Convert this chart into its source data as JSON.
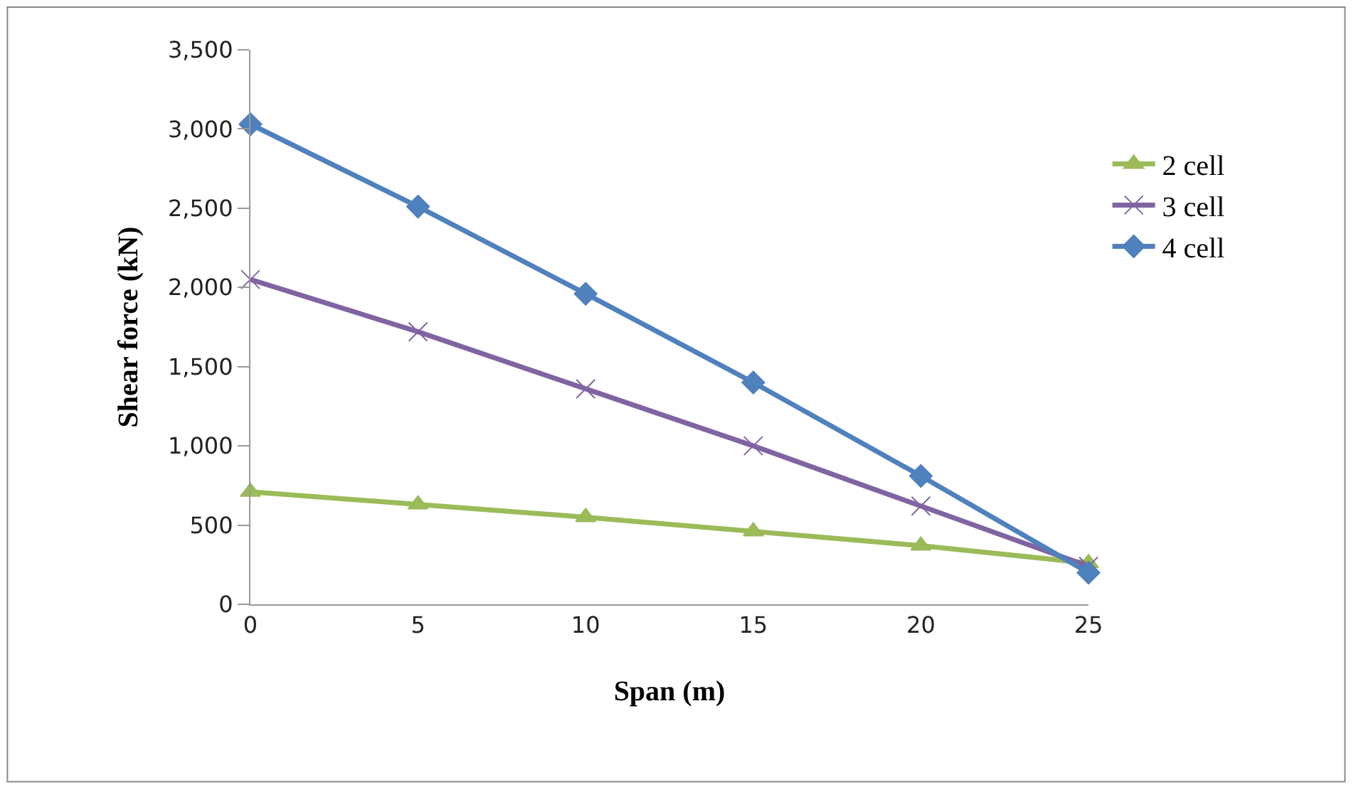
{
  "chart_data": {
    "type": "line",
    "xlabel": "Span (m)",
    "ylabel": "Shear force (kN)",
    "x": [
      0,
      5,
      10,
      15,
      20,
      25
    ],
    "series": [
      {
        "name": "2 cell",
        "color": "#9bbb59",
        "marker": "triangle",
        "values": [
          710,
          630,
          550,
          460,
          370,
          260
        ]
      },
      {
        "name": "3 cell",
        "color": "#8064a2",
        "marker": "cross",
        "values": [
          2050,
          1720,
          1360,
          1000,
          620,
          240
        ]
      },
      {
        "name": "4 cell",
        "color": "#4f81bd",
        "marker": "diamond",
        "values": [
          3030,
          2510,
          1960,
          1400,
          810,
          200
        ]
      }
    ],
    "xlim": [
      0,
      25
    ],
    "xticks": [
      0,
      5,
      10,
      15,
      20,
      25
    ],
    "ylim": [
      0,
      3500
    ],
    "yticks": [
      {
        "value": 0,
        "label": "0"
      },
      {
        "value": 500,
        "label": "500"
      },
      {
        "value": 1000,
        "label": "1,000"
      },
      {
        "value": 1500,
        "label": "1,500"
      },
      {
        "value": 2000,
        "label": "2,000"
      },
      {
        "value": 2500,
        "label": "2,500"
      },
      {
        "value": 3000,
        "label": "3,000"
      },
      {
        "value": 3500,
        "label": "3,500"
      }
    ],
    "legend": "right"
  }
}
